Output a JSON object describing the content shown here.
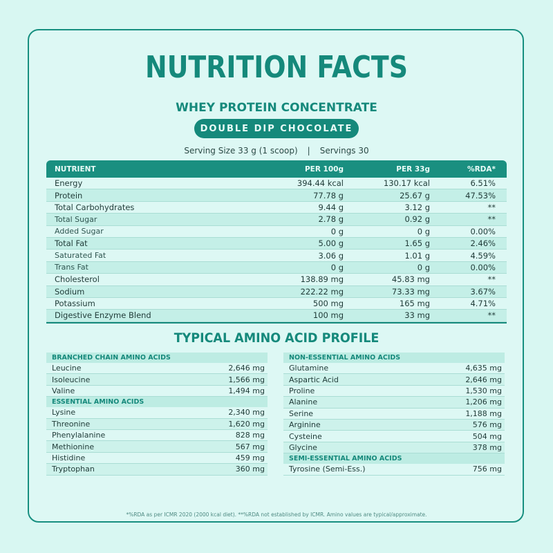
{
  "title": "NUTRITION FACTS",
  "subtitle": "WHEY PROTEIN CONCENTRATE",
  "flavor": "DOUBLE DIP CHOCOLATE",
  "serving": {
    "size_label": "Serving Size  33 g (1 scoop)",
    "sep": "|",
    "servings_label": "Servings  30"
  },
  "nutrition": {
    "headers": [
      "NUTRIENT",
      "PER 100g",
      "PER 33g",
      "%RDA*"
    ],
    "rows": [
      {
        "name": "Energy",
        "per100": "394.44 kcal",
        "per33": "130.17 kcal",
        "rda": "6.51%"
      },
      {
        "name": "Protein",
        "per100": "77.78 g",
        "per33": "25.67 g",
        "rda": "47.53%"
      },
      {
        "name": "Total Carbohydrates",
        "per100": "9.44 g",
        "per33": "3.12 g",
        "rda": "**"
      },
      {
        "name": "Total Sugar",
        "per100": "2.78 g",
        "per33": "0.92 g",
        "rda": "**"
      },
      {
        "name": "Added Sugar",
        "per100": "0 g",
        "per33": "0 g",
        "rda": "0.00%"
      },
      {
        "name": "Total Fat",
        "per100": "5.00 g",
        "per33": "1.65 g",
        "rda": "2.46%"
      },
      {
        "name": "Saturated Fat",
        "per100": "3.06 g",
        "per33": "1.01 g",
        "rda": "4.59%"
      },
      {
        "name": "Trans Fat",
        "per100": "0 g",
        "per33": "0 g",
        "rda": "0.00%"
      },
      {
        "name": "Cholesterol",
        "per100": "138.89 mg",
        "per33": "45.83 mg",
        "rda": "**"
      },
      {
        "name": "Sodium",
        "per100": "222.22 mg",
        "per33": "73.33 mg",
        "rda": "3.67%"
      },
      {
        "name": "Potassium",
        "per100": "500 mg",
        "per33": "165 mg",
        "rda": "4.71%"
      },
      {
        "name": "Digestive Enzyme Blend",
        "per100": "100 mg",
        "per33": "33 mg",
        "rda": "**"
      }
    ]
  },
  "amino_title": "TYPICAL AMINO ACID PROFILE",
  "amino_left": [
    {
      "heading": "BRANCHED CHAIN AMINO ACIDS",
      "items": [
        {
          "name": "Leucine",
          "value": "2,646 mg"
        },
        {
          "name": "Isoleucine",
          "value": "1,566 mg"
        },
        {
          "name": "Valine",
          "value": "1,494 mg"
        }
      ]
    },
    {
      "heading": "ESSENTIAL AMINO ACIDS",
      "items": [
        {
          "name": "Lysine",
          "value": "2,340 mg"
        },
        {
          "name": "Threonine",
          "value": "1,620 mg"
        },
        {
          "name": "Phenylalanine",
          "value": "828 mg"
        },
        {
          "name": "Methionine",
          "value": "567 mg"
        },
        {
          "name": "Histidine",
          "value": "459 mg"
        },
        {
          "name": "Tryptophan",
          "value": "360 mg"
        }
      ]
    }
  ],
  "amino_right": [
    {
      "heading": "NON-ESSENTIAL AMINO ACIDS",
      "items": [
        {
          "name": "Glutamine",
          "value": "4,635 mg"
        },
        {
          "name": "Aspartic Acid",
          "value": "2,646 mg"
        },
        {
          "name": "Proline",
          "value": "1,530 mg"
        },
        {
          "name": "Alanine",
          "value": "1,206 mg"
        },
        {
          "name": "Serine",
          "value": "1,188 mg"
        },
        {
          "name": "Arginine",
          "value": "576 mg"
        },
        {
          "name": "Cysteine",
          "value": "504 mg"
        },
        {
          "name": "Glycine",
          "value": "378 mg"
        }
      ]
    },
    {
      "heading": "SEMI-ESSENTIAL AMINO ACIDS",
      "items": [
        {
          "name": "Tyrosine (Semi-Ess.)",
          "value": "756 mg"
        }
      ]
    }
  ],
  "footnote": "*%RDA as per ICMR 2020 (2000 kcal diet).  **%RDA not established by ICMR.  Amino values are typical/approximate.",
  "colors": {
    "accent": "#15897b",
    "background": "#d8f7f2"
  }
}
